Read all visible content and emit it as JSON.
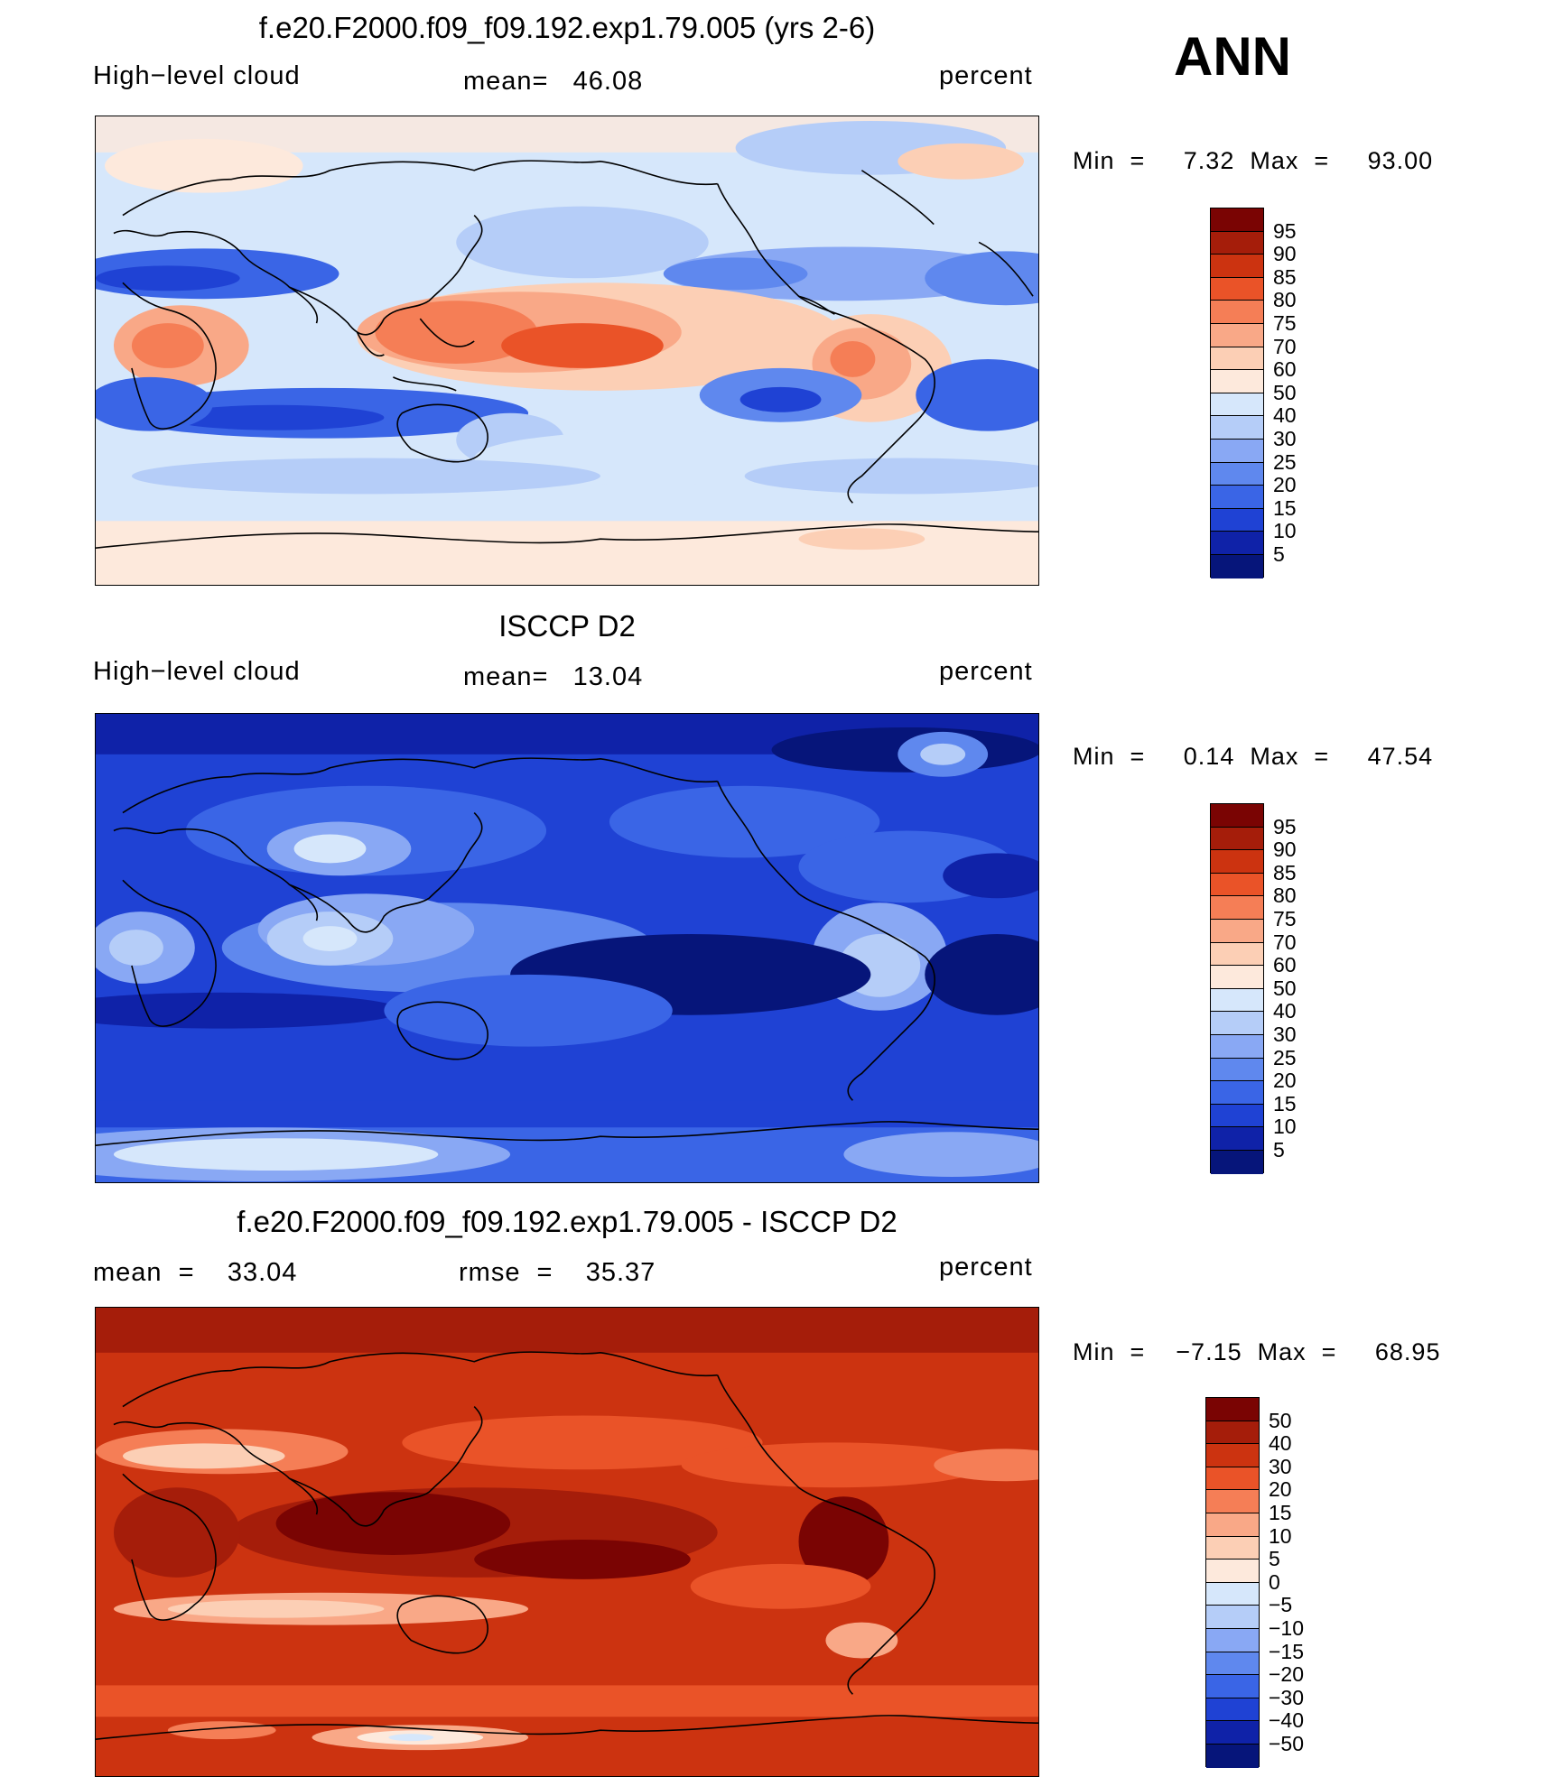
{
  "season": "ANN",
  "panels": [
    {
      "title": "f.e20.F2000.f09_f09.192.exp1.79.005 (yrs 2-6)",
      "left": "High−level cloud",
      "center": "mean=   46.08",
      "right": "percent",
      "min_max": "Min  =     7.32  Max  =     93.00",
      "cbar_labels": [
        "95",
        "90",
        "85",
        "80",
        "75",
        "70",
        "60",
        "50",
        "40",
        "30",
        "25",
        "20",
        "15",
        "10",
        "5"
      ],
      "cbar_colors": [
        "#7a0403",
        "#a51d0a",
        "#cc3310",
        "#ea5328",
        "#f57e56",
        "#f9a887",
        "#fccfb5",
        "#fde9dc",
        "#d6e7fb",
        "#b5cdf8",
        "#89a8f4",
        "#5f88ee",
        "#3a65e6",
        "#1f42d4",
        "#0f22a8",
        "#06157a"
      ]
    },
    {
      "title": "ISCCP D2",
      "left": "High−level cloud",
      "center": "mean=   13.04",
      "right": "percent",
      "min_max": "Min  =     0.14  Max  =     47.54",
      "cbar_labels": [
        "95",
        "90",
        "85",
        "80",
        "75",
        "70",
        "60",
        "50",
        "40",
        "30",
        "25",
        "20",
        "15",
        "10",
        "5"
      ],
      "cbar_colors": [
        "#7a0403",
        "#a51d0a",
        "#cc3310",
        "#ea5328",
        "#f57e56",
        "#f9a887",
        "#fccfb5",
        "#fde9dc",
        "#d6e7fb",
        "#b5cdf8",
        "#89a8f4",
        "#5f88ee",
        "#3a65e6",
        "#1f42d4",
        "#0f22a8",
        "#06157a"
      ]
    },
    {
      "title": "f.e20.F2000.f09_f09.192.exp1.79.005 - ISCCP D2",
      "left": "mean  =    33.04",
      "center": "rmse  =    35.37",
      "right": "percent",
      "min_max": "Min  =    −7.15  Max  =     68.95",
      "cbar_labels": [
        "50",
        "40",
        "30",
        "20",
        "15",
        "10",
        "5",
        "0",
        "−5",
        "−10",
        "−15",
        "−20",
        "−30",
        "−40",
        "−50"
      ],
      "cbar_colors": [
        "#7a0403",
        "#a51d0a",
        "#cc3310",
        "#ea5328",
        "#f57e56",
        "#f9a887",
        "#fccfb5",
        "#fde9dc",
        "#d6e7fb",
        "#b5cdf8",
        "#89a8f4",
        "#5f88ee",
        "#3a65e6",
        "#1f42d4",
        "#0f22a8",
        "#06157a"
      ]
    }
  ]
}
